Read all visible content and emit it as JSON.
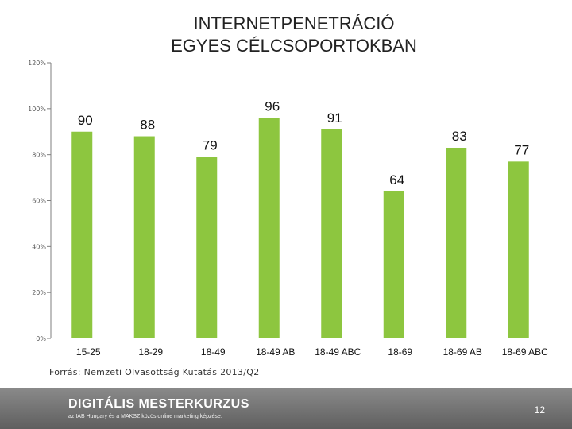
{
  "title": {
    "line1": "INTERNETPENETRÁCIÓ",
    "line2": "EGYES CÉLCSOPORTOKBAN"
  },
  "chart_data": {
    "type": "bar",
    "title": "INTERNETPENETRÁCIÓ EGYES CÉLCSOPORTOKBAN",
    "categories": [
      "15-25",
      "18-29",
      "18-49",
      "18-49 AB",
      "18-49 ABC",
      "18-69",
      "18-69 AB",
      "18-69 ABC"
    ],
    "values": [
      90,
      88,
      79,
      96,
      91,
      64,
      83,
      77
    ],
    "ylim": [
      0,
      120
    ],
    "yticks": [
      0,
      20,
      40,
      60,
      80,
      100,
      120
    ],
    "ytick_labels": [
      "0%",
      "20%",
      "40%",
      "60%",
      "80%",
      "100%",
      "120%"
    ],
    "bar_color": "#8dc63f",
    "grid": false
  },
  "source": "Forrás: Nemzeti Olvasottság Kutatás 2013/Q2",
  "footer": {
    "brand": "DIGITÁLIS MESTERKURZUS",
    "tagline": "az IAB Hungary és a MAKSZ közös online marketing képzése.",
    "page_number": "12"
  }
}
